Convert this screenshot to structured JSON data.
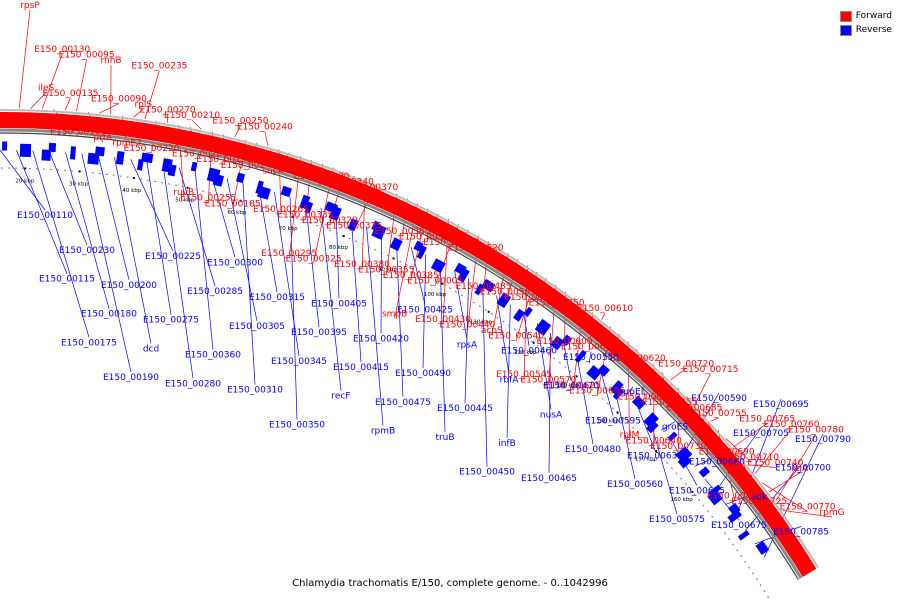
{
  "caption": "Chlamydia trachomatis E/150, complete genome. - 0..1042996",
  "legend": [
    {
      "label": "Forward",
      "color": "#ff0000"
    },
    {
      "label": "Reverse",
      "color": "#0000ff"
    }
  ],
  "colors": {
    "forward": "#ff0000",
    "reverse": "#0000ff",
    "ring_outline": "#555555",
    "tick": "#000000"
  },
  "scale_unit": "kbp",
  "scale_labels": [
    "20 kbp",
    "30 kbp",
    "40 kbp",
    "50 kbp",
    "60 kbp",
    "70 kbp",
    "80 kbp",
    "90 kbp",
    "100 kbp",
    "110 kbp",
    "120 kbp",
    "130 kbp",
    "140 kbp",
    "150 kbp",
    "160 kbp"
  ],
  "forward_labels": [
    "rpsP",
    "ileS",
    "E150_00130",
    "E150_00100",
    "E150_00135",
    "E150_00095",
    "prfA",
    "E150_00090",
    "rnhB",
    "rpmE2",
    "rplS",
    "E150_00235",
    "E150_00220",
    "E150_00270",
    "ruvB",
    "E150_00260",
    "E150_00210",
    "E150_00255",
    "E150_00195",
    "E150_00250",
    "E150_00185",
    "E150_00245",
    "E150_00240",
    "E150_00265",
    "sucA",
    "E150_00295",
    "E150_00335",
    "E150_00330",
    "E150_00325",
    "E150_00320",
    "E150_00340",
    "E150_00380",
    "E150_00375",
    "E150_00370",
    "E150_00355",
    "E150_00365",
    "smpB",
    "E150_00385",
    "E150_00390",
    "E150_00430",
    "E150_00005",
    "E150_00435",
    "E150_00440",
    "E150_00485",
    "E150_00520",
    "acpS",
    "E150_00565",
    "E150_00545",
    "E150_00540",
    "E150_00555",
    "E150_00570",
    "E150_00600",
    "E150_00650",
    "E150_00625",
    "E150_00615",
    "E150_00610",
    "E150_00605",
    "rpsI",
    "rplM",
    "E150_00645",
    "E150_00620",
    "E150_00640",
    "E150_00655",
    "E150_00720",
    "E150_00730",
    "E150_00685",
    "E150_00715",
    "E150_00690",
    "E150_00755",
    "E150_00745",
    "E150_00710",
    "E150_00765",
    "E150_00725",
    "E150_00740",
    "E150_00760",
    "E150_00770",
    "ligA",
    "E150_00780",
    "rpmG"
  ],
  "reverse_labels": [
    "E150_00110",
    "E150_00115",
    "E150_00175",
    "E150_00230",
    "E150_00180",
    "E150_00190",
    "E150_00200",
    "dcd",
    "E150_00225",
    "E150_00275",
    "E150_00280",
    "E150_00285",
    "E150_00360",
    "E150_00300",
    "E150_00305",
    "E150_00310",
    "E150_00315",
    "E150_00345",
    "E150_00350",
    "E150_00395",
    "recF",
    "E150_00405",
    "E150_00415",
    "rpmB",
    "E150_00420",
    "E150_00475",
    "E150_00425",
    "E150_00490",
    "truB",
    "rpsA",
    "E150_00445",
    "E150_00450",
    "rbfA",
    "infB",
    "E150_00460",
    "nusA",
    "E150_00465",
    "E150_00470",
    "E150_00480",
    "E150_00550",
    "E150_00595",
    "E150_00560",
    "groEL",
    "E150_00630",
    "E150_00575",
    "groES",
    "E150_00635",
    "E150_00590",
    "E150_00660",
    "E150_00675",
    "E150_00705",
    "adk",
    "E150_00695",
    "E150_00700",
    "E150_00785",
    "E150_00790"
  ]
}
